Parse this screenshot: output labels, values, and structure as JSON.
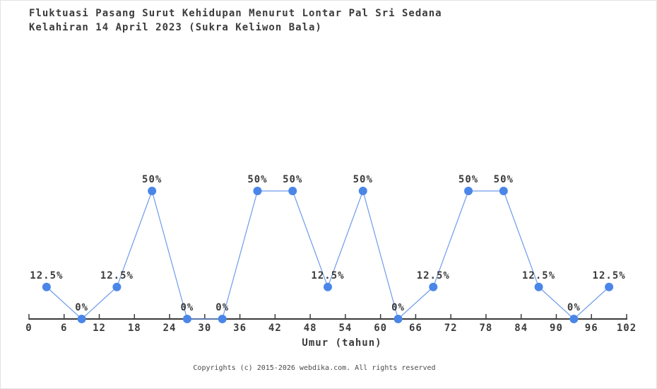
{
  "title": {
    "line1": "Fluktuasi Pasang Surut Kehidupan Menurut Lontar Pal Sri Sedana",
    "line2": "Kelahiran 14 April 2023 (Sukra Keliwon Bala)"
  },
  "footer": {
    "copyright": "Copyrights (c) 2015-2026 webdika.com. All rights reserved"
  },
  "chart_data": {
    "type": "line",
    "title": "Fluktuasi Pasang Surut Kehidupan Menurut Lontar Pal Sri Sedana Kelahiran 14 April 2023 (Sukra Keliwon Bala)",
    "xlabel": "Umur (tahun)",
    "ylabel": "",
    "x": [
      3,
      9,
      15,
      21,
      27,
      33,
      39,
      45,
      51,
      57,
      63,
      69,
      75,
      81,
      87,
      93,
      99
    ],
    "values": [
      12.5,
      0,
      12.5,
      50,
      0,
      0,
      50,
      50,
      12.5,
      50,
      0,
      12.5,
      50,
      50,
      12.5,
      0,
      12.5
    ],
    "point_labels": [
      "12.5%",
      "0%",
      "12.5%",
      "50%",
      "0%",
      "0%",
      "50%",
      "50%",
      "12.5%",
      "50%",
      "0%",
      "12.5%",
      "50%",
      "50%",
      "12.5%",
      "0%",
      "12.5%"
    ],
    "xticks": [
      0,
      6,
      12,
      18,
      24,
      30,
      36,
      42,
      48,
      54,
      60,
      66,
      72,
      78,
      84,
      90,
      96,
      102
    ],
    "xlim": [
      0,
      102
    ],
    "ylim": [
      0,
      100
    ],
    "grid": false,
    "legend": "none",
    "colors": {
      "line": "#6f9bea",
      "marker": "#4a86e8",
      "axis": "#3b3b3b",
      "label_text": "#3b3b3b",
      "footer_text": "#4a4a4a",
      "background": "#ffffff"
    }
  }
}
